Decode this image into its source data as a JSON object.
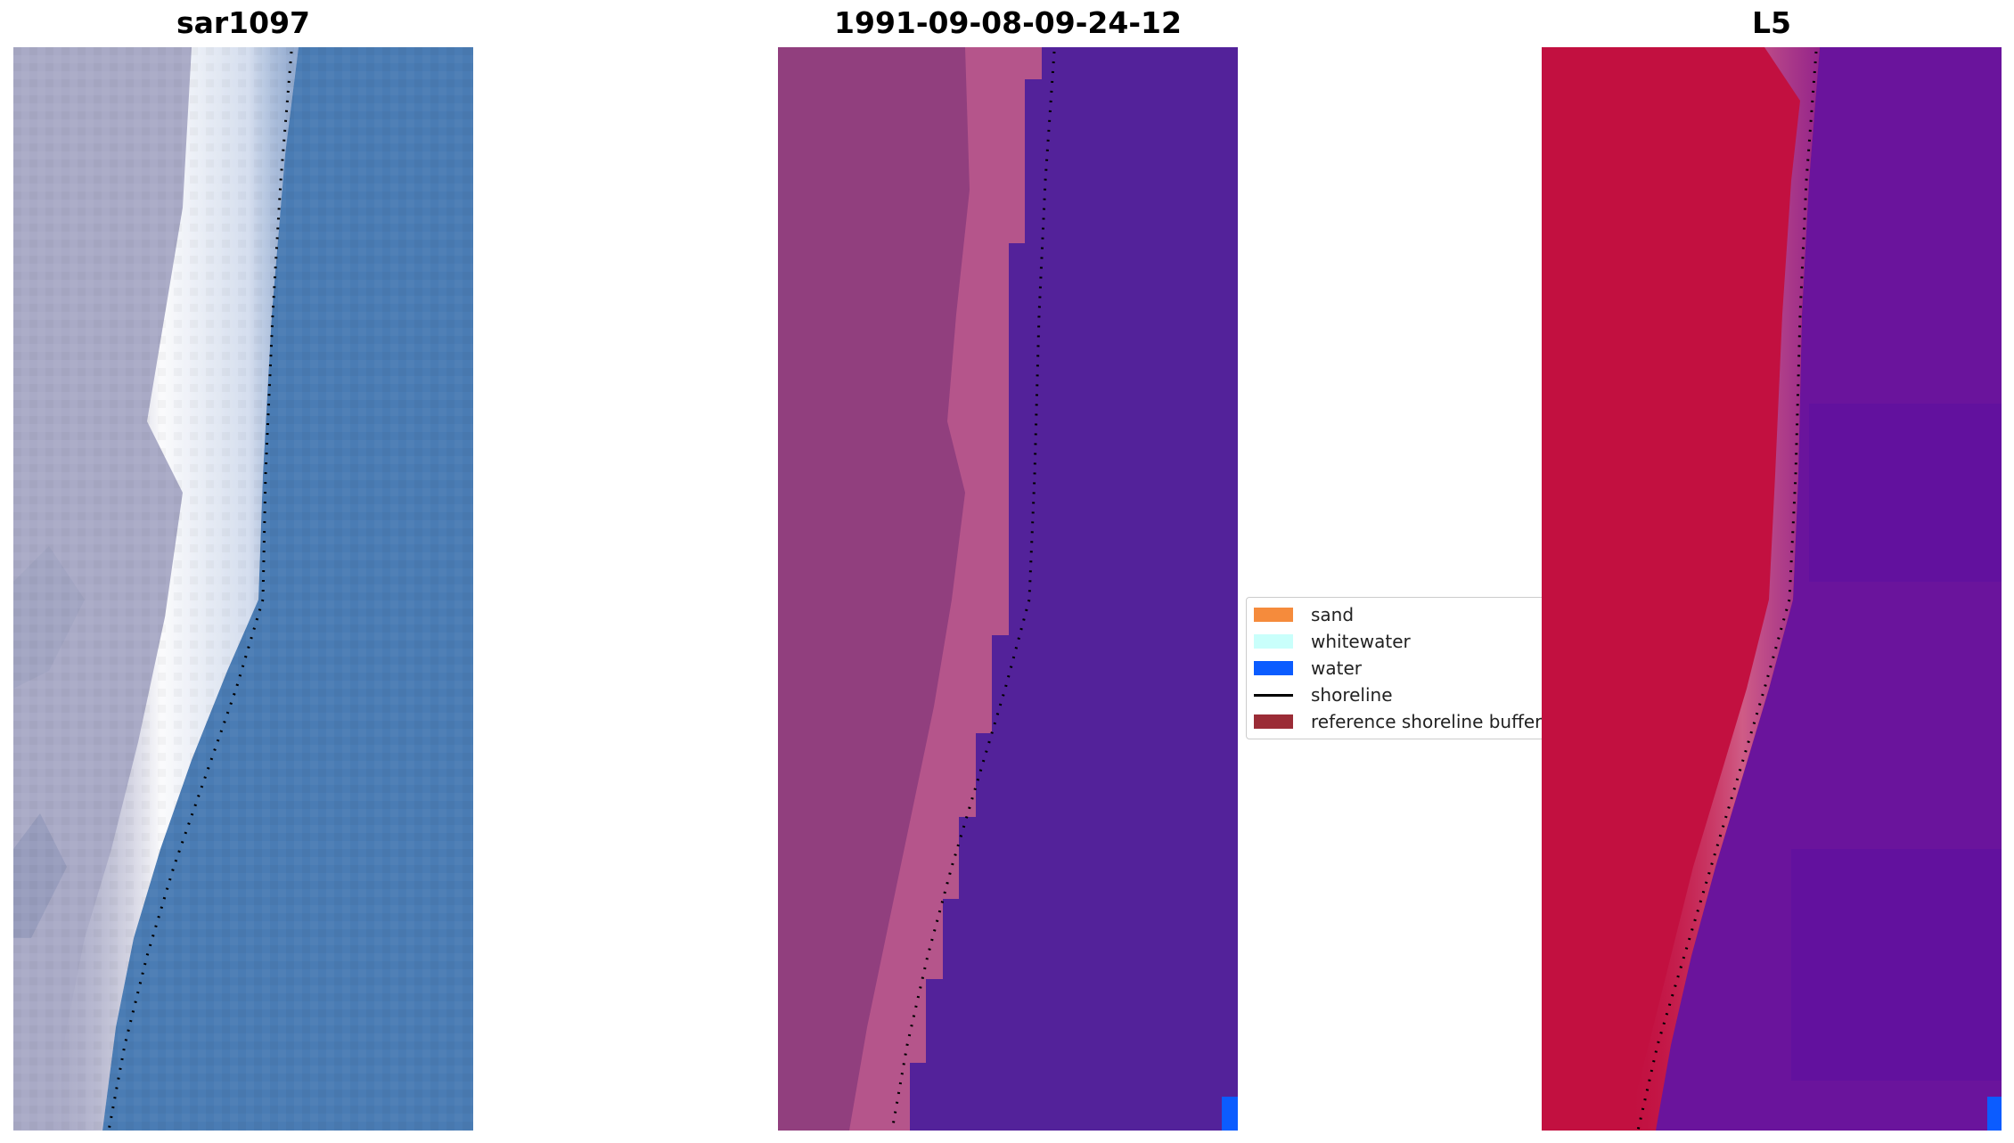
{
  "figure": {
    "panels": [
      {
        "title": "sar1097"
      },
      {
        "title": "1991-09-08-09-24-12"
      },
      {
        "title": "L5"
      }
    ]
  },
  "legend": {
    "items": [
      {
        "label": "sand",
        "kind": "patch",
        "color": "#f58b3c"
      },
      {
        "label": "whitewater",
        "kind": "patch",
        "color": "#c9fffb"
      },
      {
        "label": "water",
        "kind": "patch",
        "color": "#0b5cff"
      },
      {
        "label": "shoreline",
        "kind": "line",
        "color": "#000000"
      },
      {
        "label": "reference shoreline buffer",
        "kind": "patch",
        "color": "#9b2c36"
      }
    ]
  },
  "colors": {
    "rgb_sand": "#a9aac6",
    "rgb_water": "#4a7cb4",
    "class_sand": "#913f7e",
    "class_water": "#53229a",
    "ndwi_land": "#c21040",
    "ndwi_water": "#6a149c"
  }
}
